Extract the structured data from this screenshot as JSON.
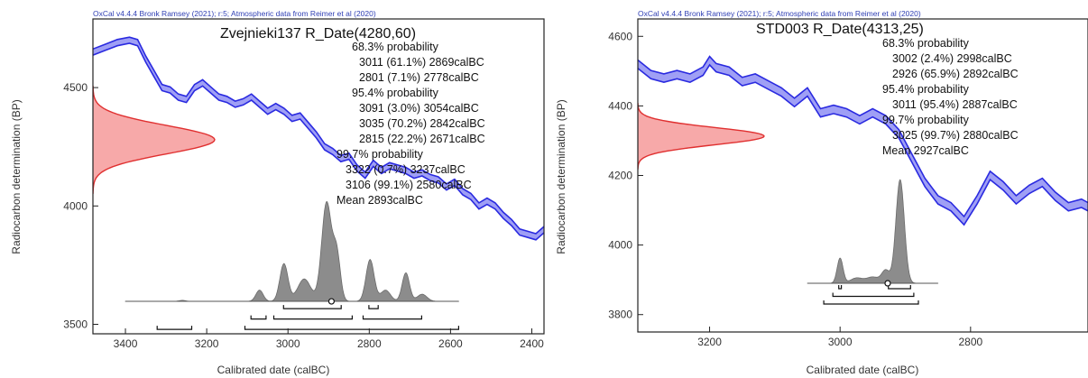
{
  "chart_data": [
    {
      "type": "line",
      "credit": "OxCal v4.4.4 Bronk Ramsey (2021); r:5; Atmospheric data from Reimer et al (2020)",
      "title": "Zvejnieki137 R_Date(4280,60)",
      "xlabel": "Calibrated date (calBC)",
      "ylabel": "Radiocarbon determination (BP)",
      "xlim": [
        3480,
        2370
      ],
      "ylim": [
        3460,
        4790
      ],
      "x_ticks": [
        "3400",
        "3200",
        "3000",
        "2800",
        "2600",
        "2400"
      ],
      "y_ticks": [
        "3500",
        "4000",
        "4500"
      ],
      "grid": false,
      "annotations": [
        "68.3% probability",
        "3011 (61.1%) 2869calBC",
        "2801 (7.1%) 2778calBC",
        "95.4% probability",
        "3091 (3.0%) 3054calBC",
        "3035 (70.2%) 2842calBC",
        "2815 (22.2%) 2671calBC",
        "99.7% probability",
        "3322 (0.7%) 3237calBC",
        "3106 (99.1%) 2580calBC",
        "Mean 2893calBC"
      ],
      "radiocarbon": {
        "mean": 4280,
        "sigma": 60,
        "color": "#e03030",
        "fill": "#f7a9a9"
      },
      "calibration_curve": {
        "color": "#2a2ae0",
        "fill": "#9f9ff5",
        "x": [
          3480,
          3450,
          3420,
          3390,
          3370,
          3350,
          3330,
          3310,
          3290,
          3270,
          3250,
          3230,
          3210,
          3190,
          3170,
          3150,
          3130,
          3110,
          3090,
          3070,
          3050,
          3030,
          3010,
          2990,
          2970,
          2950,
          2930,
          2910,
          2890,
          2870,
          2850,
          2830,
          2810,
          2790,
          2770,
          2750,
          2730,
          2710,
          2690,
          2670,
          2650,
          2630,
          2610,
          2590,
          2570,
          2550,
          2530,
          2510,
          2490,
          2470,
          2450,
          2430,
          2410,
          2390,
          2370
        ],
        "y": [
          4650,
          4670,
          4690,
          4700,
          4690,
          4620,
          4560,
          4500,
          4490,
          4460,
          4450,
          4500,
          4520,
          4490,
          4460,
          4450,
          4430,
          4440,
          4460,
          4430,
          4400,
          4420,
          4400,
          4370,
          4380,
          4340,
          4300,
          4250,
          4230,
          4200,
          4210,
          4160,
          4130,
          4180,
          4150,
          4170,
          4160,
          4150,
          4130,
          4140,
          4120,
          4110,
          4080,
          4100,
          4060,
          4040,
          4000,
          4020,
          4000,
          3960,
          3930,
          3890,
          3880,
          3870,
          3900
        ],
        "band": 13
      },
      "posterior": {
        "color": "#6b6b6b",
        "fill": "#8c8c8c",
        "baseline": 3597,
        "x_range": [
          3400,
          2580
        ],
        "peaks": [
          {
            "c": 3070,
            "w": 9,
            "h": 0.11
          },
          {
            "c": 3010,
            "w": 10,
            "h": 0.37
          },
          {
            "c": 2960,
            "w": 16,
            "h": 0.22
          },
          {
            "c": 2905,
            "w": 12,
            "h": 0.97
          },
          {
            "c": 2880,
            "w": 9,
            "h": 0.45
          },
          {
            "c": 2798,
            "w": 10,
            "h": 0.41
          },
          {
            "c": 2760,
            "w": 12,
            "h": 0.11
          },
          {
            "c": 2710,
            "w": 9,
            "h": 0.28
          },
          {
            "c": 2670,
            "w": 12,
            "h": 0.07
          },
          {
            "c": 3260,
            "w": 8,
            "h": 0.01
          }
        ],
        "mean": 2893,
        "ranges": [
          {
            "level": 1,
            "from": 3011,
            "to": 2869
          },
          {
            "level": 1,
            "from": 2801,
            "to": 2778
          },
          {
            "level": 2,
            "from": 3091,
            "to": 3054
          },
          {
            "level": 2,
            "from": 3035,
            "to": 2842
          },
          {
            "level": 2,
            "from": 2815,
            "to": 2671
          },
          {
            "level": 3,
            "from": 3322,
            "to": 3237
          },
          {
            "level": 3,
            "from": 3106,
            "to": 2580
          }
        ]
      }
    },
    {
      "type": "line",
      "credit": "OxCal v4.4.4 Bronk Ramsey (2021); r:5; Atmospheric data from Reimer et al (2020)",
      "title": "STD003 R_Date(4313,25)",
      "xlabel": "Calibrated date (calBC)",
      "ylabel": "Radiocarbon determination (BP)",
      "xlim": [
        3310,
        2620
      ],
      "ylim": [
        3750,
        4650
      ],
      "x_ticks": [
        "3200",
        "3000",
        "2800"
      ],
      "y_ticks": [
        "3800",
        "4000",
        "4200",
        "4400",
        "4600"
      ],
      "grid": false,
      "annotations": [
        "68.3% probability",
        "3002 (2.4%) 2998calBC",
        "2926 (65.9%) 2892calBC",
        "95.4% probability",
        "3011 (95.4%) 2887calBC",
        "99.7% probability",
        "3025 (99.7%) 2880calBC",
        "Mean 2927calBC"
      ],
      "radiocarbon": {
        "mean": 4313,
        "sigma": 25,
        "color": "#e03030",
        "fill": "#f7a9a9"
      },
      "calibration_curve": {
        "color": "#2a2ae0",
        "fill": "#9f9ff5",
        "x": [
          3310,
          3290,
          3270,
          3250,
          3230,
          3210,
          3200,
          3190,
          3170,
          3150,
          3130,
          3110,
          3090,
          3070,
          3050,
          3030,
          3010,
          2990,
          2970,
          2950,
          2930,
          2910,
          2890,
          2870,
          2850,
          2830,
          2810,
          2790,
          2770,
          2750,
          2730,
          2710,
          2690,
          2670,
          2650,
          2630,
          2620
        ],
        "y": [
          4520,
          4490,
          4480,
          4490,
          4480,
          4500,
          4530,
          4510,
          4500,
          4470,
          4480,
          4460,
          4440,
          4410,
          4440,
          4380,
          4390,
          4380,
          4360,
          4380,
          4360,
          4320,
          4250,
          4180,
          4130,
          4110,
          4070,
          4130,
          4200,
          4170,
          4130,
          4160,
          4180,
          4140,
          4110,
          4120,
          4110
        ],
        "band": 12
      },
      "posterior": {
        "color": "#6b6b6b",
        "fill": "#8c8c8c",
        "baseline": 3890,
        "x_range": [
          3050,
          2850
        ],
        "peaks": [
          {
            "c": 3000,
            "w": 4.5,
            "h": 0.24
          },
          {
            "c": 2975,
            "w": 9,
            "h": 0.05
          },
          {
            "c": 2950,
            "w": 10,
            "h": 0.06
          },
          {
            "c": 2908,
            "w": 6.5,
            "h": 0.99
          },
          {
            "c": 2930,
            "w": 6,
            "h": 0.12
          }
        ],
        "mean": 2927,
        "ranges": [
          {
            "level": 1,
            "from": 3002,
            "to": 2998
          },
          {
            "level": 1,
            "from": 2926,
            "to": 2892
          },
          {
            "level": 2,
            "from": 3011,
            "to": 2887
          },
          {
            "level": 3,
            "from": 3025,
            "to": 2880
          }
        ]
      }
    }
  ]
}
